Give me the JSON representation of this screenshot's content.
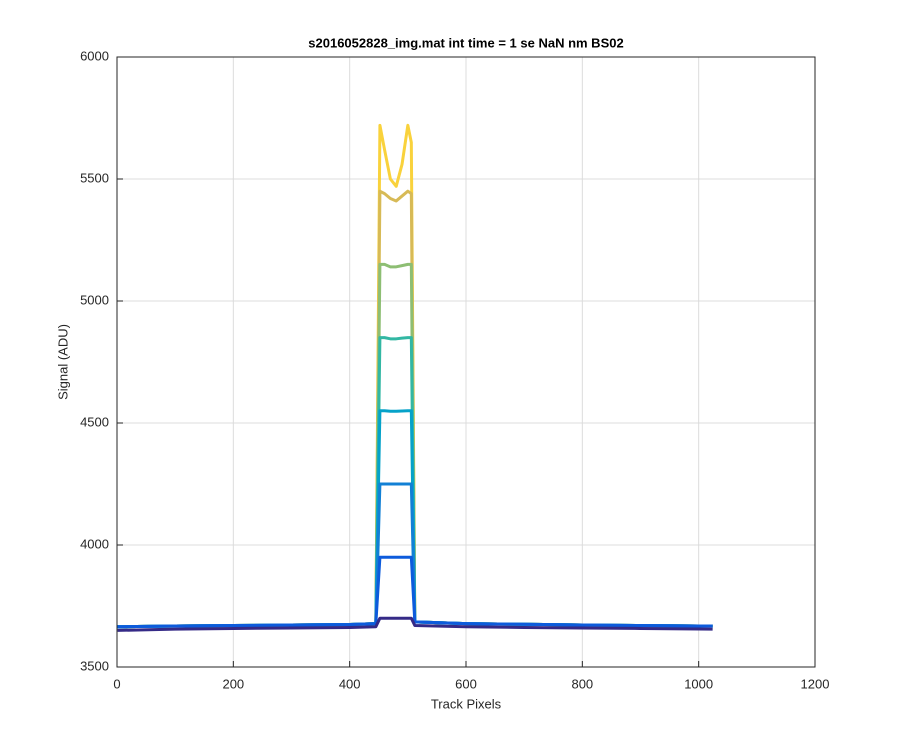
{
  "chart_data": {
    "type": "line",
    "title": "s2016052828_img.mat int time = 1 se  NaN nm BS02",
    "xlabel": "Track Pixels",
    "ylabel": "Signal (ADU)",
    "x": [
      1,
      100,
      200,
      300,
      400,
      445,
      452,
      460,
      470,
      480,
      490,
      500,
      506,
      512,
      600,
      700,
      800,
      900,
      1000,
      1024
    ],
    "series": [
      {
        "color": "#f9d23c",
        "values": [
          3665,
          3668,
          3670,
          3672,
          3674,
          3678,
          5720,
          5620,
          5500,
          5470,
          5560,
          5720,
          5650,
          3685,
          3678,
          3675,
          3672,
          3670,
          3668,
          3668
        ]
      },
      {
        "color": "#d7ba56",
        "values": [
          3665,
          3668,
          3670,
          3672,
          3674,
          3678,
          5450,
          5440,
          5420,
          5410,
          5430,
          5450,
          5440,
          3685,
          3678,
          3675,
          3672,
          3670,
          3668,
          3668
        ]
      },
      {
        "color": "#8dbe73",
        "values": [
          3665,
          3668,
          3670,
          3672,
          3674,
          3678,
          5150,
          5150,
          5140,
          5140,
          5145,
          5150,
          5150,
          3685,
          3678,
          3675,
          3672,
          3670,
          3668,
          3668
        ]
      },
      {
        "color": "#32b7a3",
        "values": [
          3665,
          3668,
          3670,
          3672,
          3674,
          3678,
          4850,
          4850,
          4845,
          4845,
          4848,
          4850,
          4850,
          3685,
          3678,
          3675,
          3672,
          3670,
          3668,
          3668
        ]
      },
      {
        "color": "#05a2c9",
        "values": [
          3665,
          3668,
          3670,
          3672,
          3674,
          3678,
          4550,
          4550,
          4548,
          4548,
          4549,
          4550,
          4550,
          3685,
          3678,
          3675,
          3672,
          3670,
          3668,
          3668
        ]
      },
      {
        "color": "#1280d5",
        "values": [
          3665,
          3668,
          3670,
          3672,
          3674,
          3678,
          4250,
          4250,
          4250,
          4250,
          4250,
          4250,
          4250,
          3685,
          3678,
          3675,
          3672,
          3670,
          3668,
          3668
        ]
      },
      {
        "color": "#0d5bdc",
        "values": [
          3665,
          3668,
          3670,
          3672,
          3674,
          3678,
          3950,
          3950,
          3950,
          3950,
          3950,
          3950,
          3950,
          3685,
          3678,
          3675,
          3672,
          3670,
          3668,
          3668
        ]
      },
      {
        "color": "#352a87",
        "values": [
          3650,
          3655,
          3658,
          3660,
          3662,
          3665,
          3700,
          3700,
          3700,
          3700,
          3700,
          3700,
          3700,
          3670,
          3665,
          3662,
          3660,
          3658,
          3656,
          3655
        ]
      }
    ],
    "xlim": [
      0,
      1200
    ],
    "xticks": [
      0,
      200,
      400,
      600,
      800,
      1000,
      1200
    ],
    "ylim": [
      3500,
      6000
    ],
    "yticks": [
      3500,
      4000,
      4500,
      5000,
      5500,
      6000
    ],
    "grid": true
  }
}
